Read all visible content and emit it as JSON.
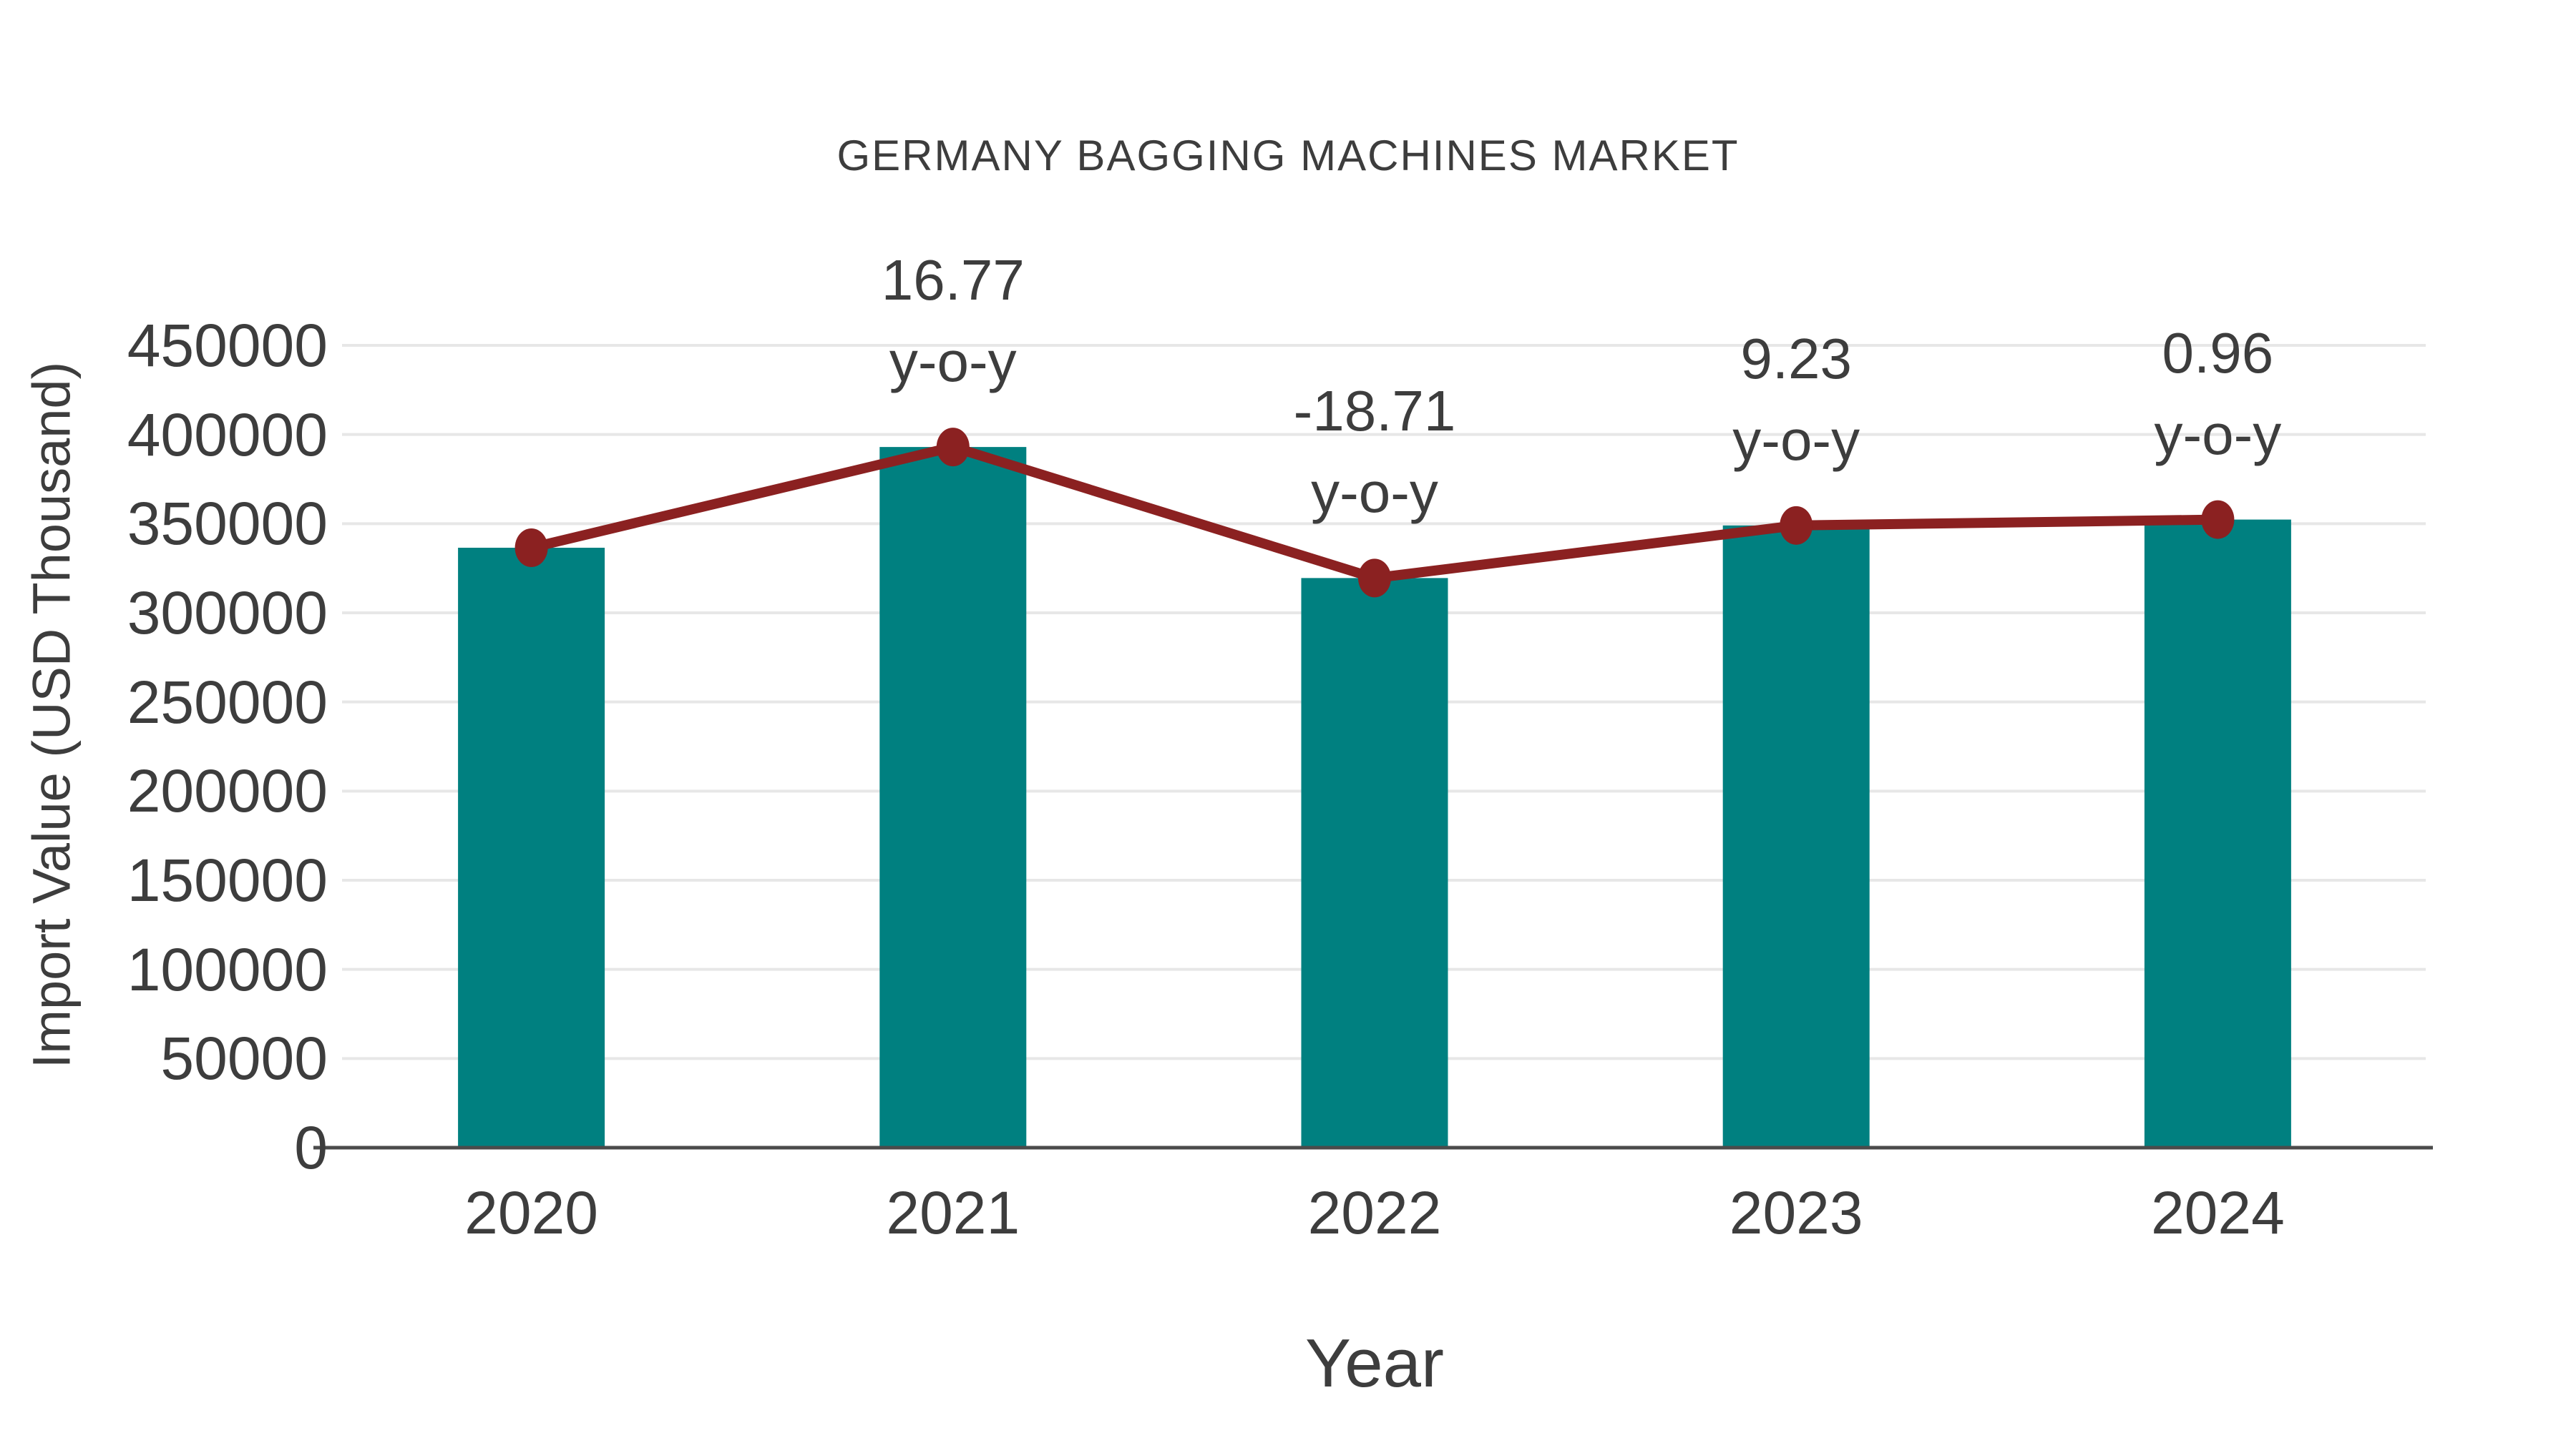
{
  "title": "GERMANY BAGGING MACHINES MARKET",
  "axes": {
    "x_title": "Year",
    "y_title": "Import Value (USD Thousand)"
  },
  "chart_data": {
    "type": "bar",
    "title": "GERMANY BAGGING MACHINES MARKET",
    "xlabel": "Year",
    "ylabel": "Import Value (USD Thousand)",
    "categories": [
      "2020",
      "2021",
      "2022",
      "2023",
      "2024"
    ],
    "series": [
      {
        "name": "Import Value (USD Thousand)",
        "type": "bar",
        "values": [
          336500,
          393000,
          319500,
          349000,
          352300
        ]
      },
      {
        "name": "y-o-y trend line",
        "type": "line",
        "values": [
          336500,
          393000,
          319500,
          349000,
          352300
        ]
      }
    ],
    "annotations": [
      {
        "category": "2021",
        "lines": [
          "16.77",
          "y-o-y"
        ]
      },
      {
        "category": "2022",
        "lines": [
          "-18.71",
          "y-o-y"
        ]
      },
      {
        "category": "2023",
        "lines": [
          "9.23",
          "y-o-y"
        ]
      },
      {
        "category": "2024",
        "lines": [
          "0.96",
          "y-o-y"
        ]
      }
    ],
    "ylim": [
      0,
      450000
    ],
    "ytick_step": 50000,
    "yticks": [
      0,
      50000,
      100000,
      150000,
      200000,
      250000,
      300000,
      350000,
      400000,
      450000
    ],
    "grid": "horizontal",
    "legend": "none",
    "colors": {
      "bar": "#008080",
      "line": "#8b2121",
      "marker": "#8b2121",
      "grid": "#e7e7e7",
      "axis": "#4b4b4b",
      "text": "#3d3d3d",
      "background": "#ffffff"
    }
  }
}
